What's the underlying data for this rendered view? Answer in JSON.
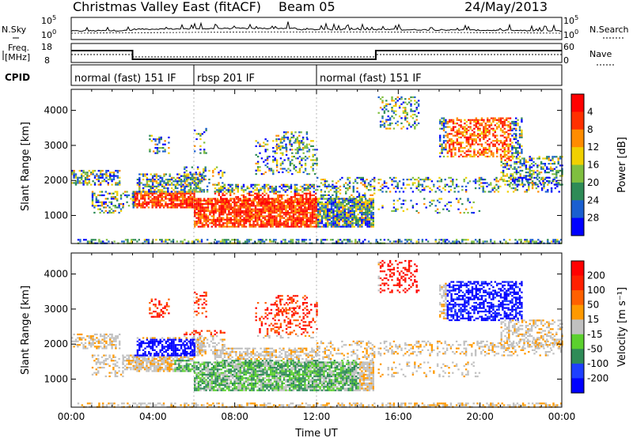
{
  "header": {
    "title": "Christmas Valley East (fitACF)",
    "beam": "Beam 05",
    "date": "24/May/2013"
  },
  "labels": {
    "nsky": "N.Sky",
    "freq_line1": "Freq.",
    "freq_line2": "[MHz]",
    "cpid": "CPID",
    "nsearch": "N.Search",
    "nave": "Nave",
    "nsky_ticks": [
      "10^5",
      "10^0"
    ],
    "nsearch_ticks": [
      "10^5",
      "10^0"
    ],
    "freq_ticks": [
      "18",
      "8"
    ],
    "nave_ticks": [
      "60",
      "0"
    ]
  },
  "cpid_segments": [
    {
      "label": "normal (fast) 151 IF",
      "start_h": 0,
      "end_h": 6
    },
    {
      "label": "rbsp 201 IF",
      "start_h": 6,
      "end_h": 12
    },
    {
      "label": "normal (fast) 151 IF",
      "start_h": 12,
      "end_h": 24
    }
  ],
  "chart_data": [
    {
      "type": "heatmap",
      "name": "Power",
      "xlabel": "",
      "ylabel": "Slant Range [km]",
      "xlim": [
        0,
        24
      ],
      "ylim": [
        200,
        4600
      ],
      "yticks": [
        1000,
        2000,
        3000,
        4000
      ],
      "colorbar": {
        "label": "Power [dB]",
        "ticks": [
          "4",
          "8",
          "12",
          "16",
          "20",
          "24",
          "28"
        ],
        "colors": [
          "#0000ff",
          "#1a5fd0",
          "#2e8b57",
          "#7fbf3f",
          "#f0d000",
          "#ff8c00",
          "#ff3000",
          "#ff0000"
        ]
      }
    },
    {
      "type": "heatmap",
      "name": "Velocity",
      "xlabel": "Time UT",
      "ylabel": "Slant Range [km]",
      "xlim": [
        0,
        24
      ],
      "ylim": [
        200,
        4600
      ],
      "yticks": [
        1000,
        2000,
        3000,
        4000
      ],
      "xticks": [
        "00:00",
        "04:00",
        "08:00",
        "12:00",
        "16:00",
        "20:00",
        "00:00"
      ],
      "colorbar": {
        "label": "Velocity [m s⁻¹]",
        "ticks": [
          "200",
          "100",
          "50",
          "15",
          "-15",
          "-50",
          "-100",
          "-200"
        ],
        "colors": [
          "#0000ff",
          "#1e3fff",
          "#2e8b57",
          "#5bd02e",
          "#c0c0c0",
          "#ff9900",
          "#ff6000",
          "#ff2000",
          "#ff0000"
        ]
      }
    }
  ]
}
